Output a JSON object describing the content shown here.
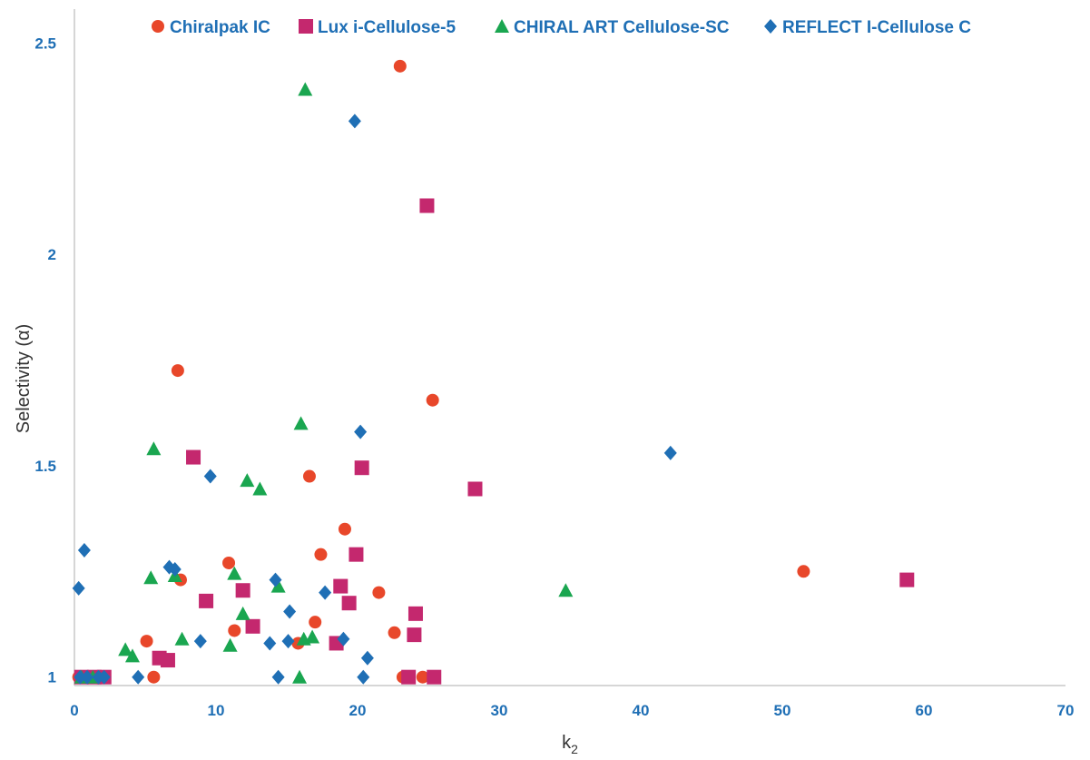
{
  "chart_data": {
    "type": "scatter",
    "title": "",
    "xlabel": "k",
    "xlabel_sub": "2",
    "ylabel": "Selectivity (α)",
    "xlim": [
      0,
      70
    ],
    "ylim": [
      0.98,
      2.58
    ],
    "xticks": [
      "0",
      "10",
      "20",
      "30",
      "40",
      "50",
      "60",
      "70"
    ],
    "xtick_values": [
      0,
      10,
      20,
      30,
      40,
      50,
      60,
      70
    ],
    "yticks": [
      "1",
      "1.5",
      "2",
      "2.5"
    ],
    "ytick_values": [
      1,
      1.5,
      2,
      2.5
    ],
    "grid": false,
    "legend_position": "top",
    "series": [
      {
        "name": "Chiralpak IC",
        "marker": "circle",
        "color": "#e8472a",
        "points": [
          [
            0.3,
            1.0
          ],
          [
            5.6,
            1.0
          ],
          [
            5.1,
            1.085
          ],
          [
            7.3,
            1.725
          ],
          [
            7.5,
            1.23
          ],
          [
            10.9,
            1.27
          ],
          [
            11.3,
            1.11
          ],
          [
            15.8,
            1.08
          ],
          [
            16.6,
            1.475
          ],
          [
            17.0,
            1.13
          ],
          [
            17.4,
            1.29
          ],
          [
            19.1,
            1.35
          ],
          [
            21.5,
            1.2
          ],
          [
            22.6,
            1.105
          ],
          [
            23.0,
            2.445
          ],
          [
            23.2,
            1.0
          ],
          [
            24.6,
            1.0
          ],
          [
            25.3,
            1.655
          ],
          [
            51.5,
            1.25
          ]
        ]
      },
      {
        "name": "Lux i-Cellulose-5",
        "marker": "square",
        "color": "#c4286e",
        "points": [
          [
            0.5,
            1.0
          ],
          [
            1.4,
            1.0
          ],
          [
            2.1,
            1.0
          ],
          [
            6.0,
            1.045
          ],
          [
            6.6,
            1.04
          ],
          [
            8.4,
            1.52
          ],
          [
            9.3,
            1.18
          ],
          [
            11.9,
            1.205
          ],
          [
            12.6,
            1.12
          ],
          [
            18.5,
            1.08
          ],
          [
            18.8,
            1.215
          ],
          [
            19.4,
            1.175
          ],
          [
            19.9,
            1.29
          ],
          [
            20.3,
            1.495
          ],
          [
            23.6,
            1.0
          ],
          [
            24.0,
            1.1
          ],
          [
            24.1,
            1.15
          ],
          [
            24.9,
            2.115
          ],
          [
            25.4,
            1.0
          ],
          [
            28.3,
            1.445
          ],
          [
            58.8,
            1.23
          ]
        ]
      },
      {
        "name": "CHIRAL ART Cellulose-SC",
        "marker": "triangle",
        "color": "#1aa650",
        "points": [
          [
            0.5,
            1.0
          ],
          [
            1.3,
            1.0
          ],
          [
            3.6,
            1.065
          ],
          [
            4.1,
            1.05
          ],
          [
            5.4,
            1.235
          ],
          [
            5.6,
            1.54
          ],
          [
            7.1,
            1.24
          ],
          [
            7.6,
            1.09
          ],
          [
            11.0,
            1.075
          ],
          [
            11.3,
            1.245
          ],
          [
            11.9,
            1.15
          ],
          [
            12.2,
            1.465
          ],
          [
            13.1,
            1.445
          ],
          [
            14.4,
            1.215
          ],
          [
            15.9,
            1.0
          ],
          [
            16.0,
            1.6
          ],
          [
            16.2,
            1.09
          ],
          [
            16.3,
            2.39
          ],
          [
            16.8,
            1.095
          ],
          [
            34.7,
            1.205
          ]
        ]
      },
      {
        "name": "REFLECT I-Cellulose C",
        "marker": "diamond",
        "color": "#1f6fb5",
        "points": [
          [
            0.3,
            1.21
          ],
          [
            0.4,
            1.0
          ],
          [
            0.9,
            1.0
          ],
          [
            0.7,
            1.3
          ],
          [
            1.7,
            1.0
          ],
          [
            2.1,
            1.0
          ],
          [
            4.5,
            1.0
          ],
          [
            6.7,
            1.26
          ],
          [
            7.1,
            1.255
          ],
          [
            8.9,
            1.085
          ],
          [
            9.6,
            1.475
          ],
          [
            13.8,
            1.08
          ],
          [
            14.2,
            1.23
          ],
          [
            14.4,
            1.0
          ],
          [
            15.1,
            1.085
          ],
          [
            15.2,
            1.155
          ],
          [
            17.7,
            1.2
          ],
          [
            19.0,
            1.09
          ],
          [
            19.8,
            2.315
          ],
          [
            20.2,
            1.58
          ],
          [
            20.4,
            1.0
          ],
          [
            20.7,
            1.045
          ],
          [
            42.1,
            1.53
          ]
        ]
      }
    ]
  }
}
